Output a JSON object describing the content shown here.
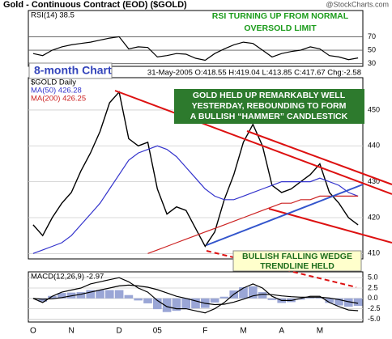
{
  "header": {
    "title": "Gold - Continuous Contract (EOD) ($GOLD)",
    "credit": "@StockCharts.com"
  },
  "annotations": {
    "rsi_note": [
      "RSI TURNING UP FROM NORMAL",
      "OVERSOLD LIMIT"
    ],
    "period": "8-month Chart",
    "hammer_note": [
      "GOLD HELD UP REMARKABLY WELL",
      "YESTERDAY, REBOUNDING TO FORM",
      "A BULLISH “HAMMER” CANDLESTICK"
    ],
    "wedge_note": [
      "BULLISH FALLING WEDGE",
      "TRENDLINE HELD"
    ]
  },
  "chart_data": [
    {
      "type": "line",
      "ylim": [
        26,
        109
      ],
      "yticks": [
        30,
        50,
        70
      ],
      "grid": true,
      "series": [
        {
          "name": "RSI(14) 38.5",
          "color": "#000000",
          "values": [
            45,
            42,
            50,
            55,
            58,
            60,
            62,
            65,
            68,
            70,
            52,
            55,
            54,
            40,
            42,
            45,
            44,
            38,
            35,
            45,
            52,
            58,
            62,
            60,
            50,
            40,
            45,
            48,
            50,
            55,
            52,
            42,
            40,
            36,
            38.5
          ]
        }
      ]
    },
    {
      "type": "line",
      "date_line": "31-May-2005 O:418.55 H:419.04 L:413.85 C:417.67 Chg:-2.58",
      "ylim": [
        408.5,
        459
      ],
      "yticks": [
        410,
        420,
        430,
        440,
        450
      ],
      "grid": true,
      "series": [
        {
          "name": "$GOLD Daily",
          "color": "#000000",
          "values": [
            418,
            415,
            420,
            424,
            427,
            433,
            438,
            444,
            452,
            455,
            442,
            440,
            441,
            428,
            421,
            423,
            422,
            417,
            412,
            416,
            425,
            432,
            441,
            446,
            440,
            429,
            427,
            428,
            430,
            432,
            435,
            427,
            424,
            420,
            418
          ]
        },
        {
          "name": "MA(50) 426.28",
          "color": "#3333cc",
          "values": [
            410,
            411,
            412,
            413,
            415,
            418,
            421,
            424,
            428,
            432,
            436,
            438,
            439,
            440,
            439,
            437,
            434,
            431,
            428,
            426,
            425,
            425,
            426,
            427,
            428,
            429,
            430,
            430,
            430,
            430,
            431,
            430,
            429,
            427,
            426
          ]
        },
        {
          "name": "MA(200) 426.25",
          "color": "#cc2222",
          "values": [
            null,
            null,
            null,
            null,
            null,
            null,
            null,
            null,
            null,
            null,
            null,
            null,
            410,
            411,
            412,
            413,
            414,
            415,
            416,
            417,
            418,
            419,
            420,
            421,
            422,
            423,
            424,
            424,
            425,
            425,
            426,
            426,
            426,
            426,
            426
          ]
        }
      ]
    },
    {
      "type": "line",
      "ylim": [
        -5.7,
        6.4
      ],
      "yticks": [
        {
          "value": 5,
          "label": "5.0"
        },
        {
          "value": 2.5,
          "label": "2.5"
        },
        {
          "value": 0,
          "label": "0.0"
        },
        {
          "value": -2.5,
          "label": "-2.5"
        },
        {
          "value": -5,
          "label": "-5.0"
        }
      ],
      "grid": true,
      "categories": [
        "O",
        null,
        null,
        null,
        "N",
        null,
        null,
        null,
        null,
        "D",
        null,
        null,
        null,
        "05",
        null,
        null,
        null,
        null,
        "F",
        null,
        null,
        null,
        "M",
        null,
        null,
        null,
        "A",
        null,
        null,
        null,
        "M",
        null,
        null,
        null,
        null
      ],
      "series": [
        {
          "kind": "bar",
          "color": "#9aa6d6",
          "values": [
            0,
            -0.8,
            0.6,
            1.3,
            1.4,
            1.5,
            2,
            2,
            2,
            2,
            0.8,
            -0.5,
            -1.2,
            -2.6,
            -3.3,
            -3,
            -2.5,
            -2.4,
            -2.3,
            -1,
            0.4,
            1.9,
            2.7,
            2.9,
            1.5,
            -0.4,
            -1.1,
            -0.9,
            -0.3,
            0.2,
            0.2,
            -1.1,
            -1.7,
            -2,
            -1.8
          ]
        },
        {
          "name": "MACD(12,26,9) -2.97",
          "color": "#000000",
          "values": [
            0,
            -1,
            0.5,
            1.5,
            2,
            2.5,
            3.5,
            4,
            4.5,
            5,
            4,
            2.5,
            1.5,
            -0.5,
            -2,
            -2.5,
            -2.5,
            -3,
            -3.5,
            -2.5,
            -1,
            1,
            2.5,
            3.5,
            2.5,
            0.5,
            -0.5,
            -0.5,
            0,
            0.5,
            0.5,
            -1,
            -2,
            -2.8,
            -2.97
          ]
        },
        {
          "color": "#000000",
          "values": [
            0,
            -0.2,
            -0.1,
            0.2,
            0.6,
            1,
            1.5,
            2,
            2.5,
            3,
            3.2,
            3,
            2.7,
            2.1,
            1.3,
            0.5,
            0,
            -0.6,
            -1.2,
            -1.5,
            -1.4,
            -0.9,
            -0.2,
            0.6,
            1,
            0.9,
            0.6,
            0.4,
            0.3,
            0.3,
            0.3,
            0.1,
            -0.3,
            -0.8,
            -1.2
          ]
        }
      ]
    }
  ]
}
